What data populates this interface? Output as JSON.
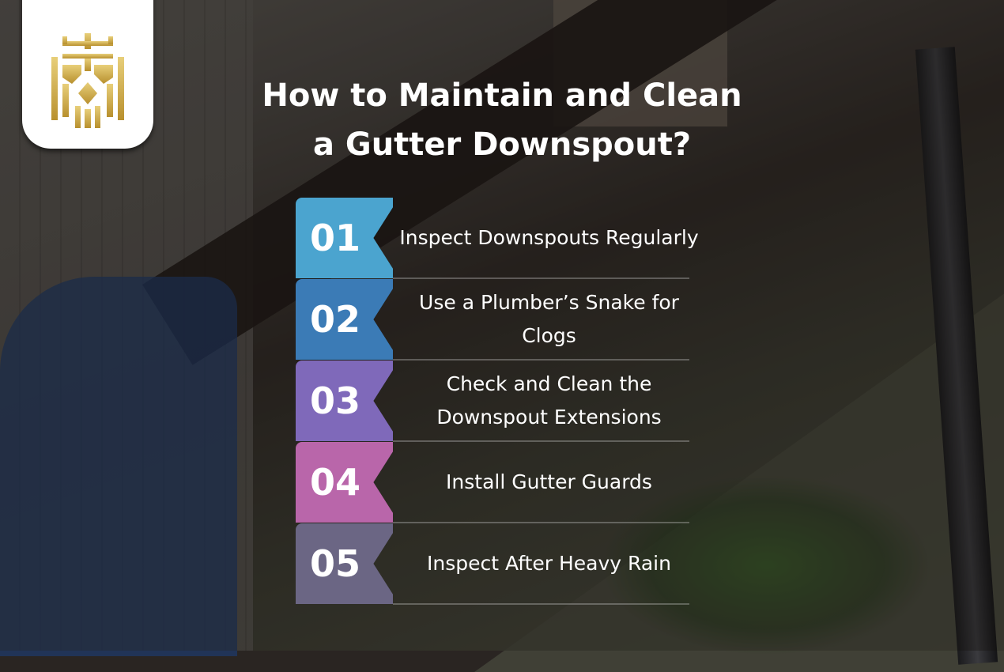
{
  "title": {
    "line1": "How to Maintain and Clean",
    "line2": "a Gutter Downspout?"
  },
  "logo": {
    "icon": "crown-shield-logo",
    "color": "#d4b24c"
  },
  "steps": [
    {
      "number": "01",
      "label": "Inspect Downspouts Regularly",
      "color": "#4ba4cf"
    },
    {
      "number": "02",
      "label": "Use a Plumber’s Snake for Clogs",
      "color": "#3b7bb6"
    },
    {
      "number": "03",
      "label": "Check and Clean the Downspout Extensions",
      "color": "#7f69ba"
    },
    {
      "number": "04",
      "label": "Install Gutter Guards",
      "color": "#b966aa"
    },
    {
      "number": "05",
      "label": "Inspect After Heavy Rain",
      "color": "#6b6684"
    }
  ]
}
